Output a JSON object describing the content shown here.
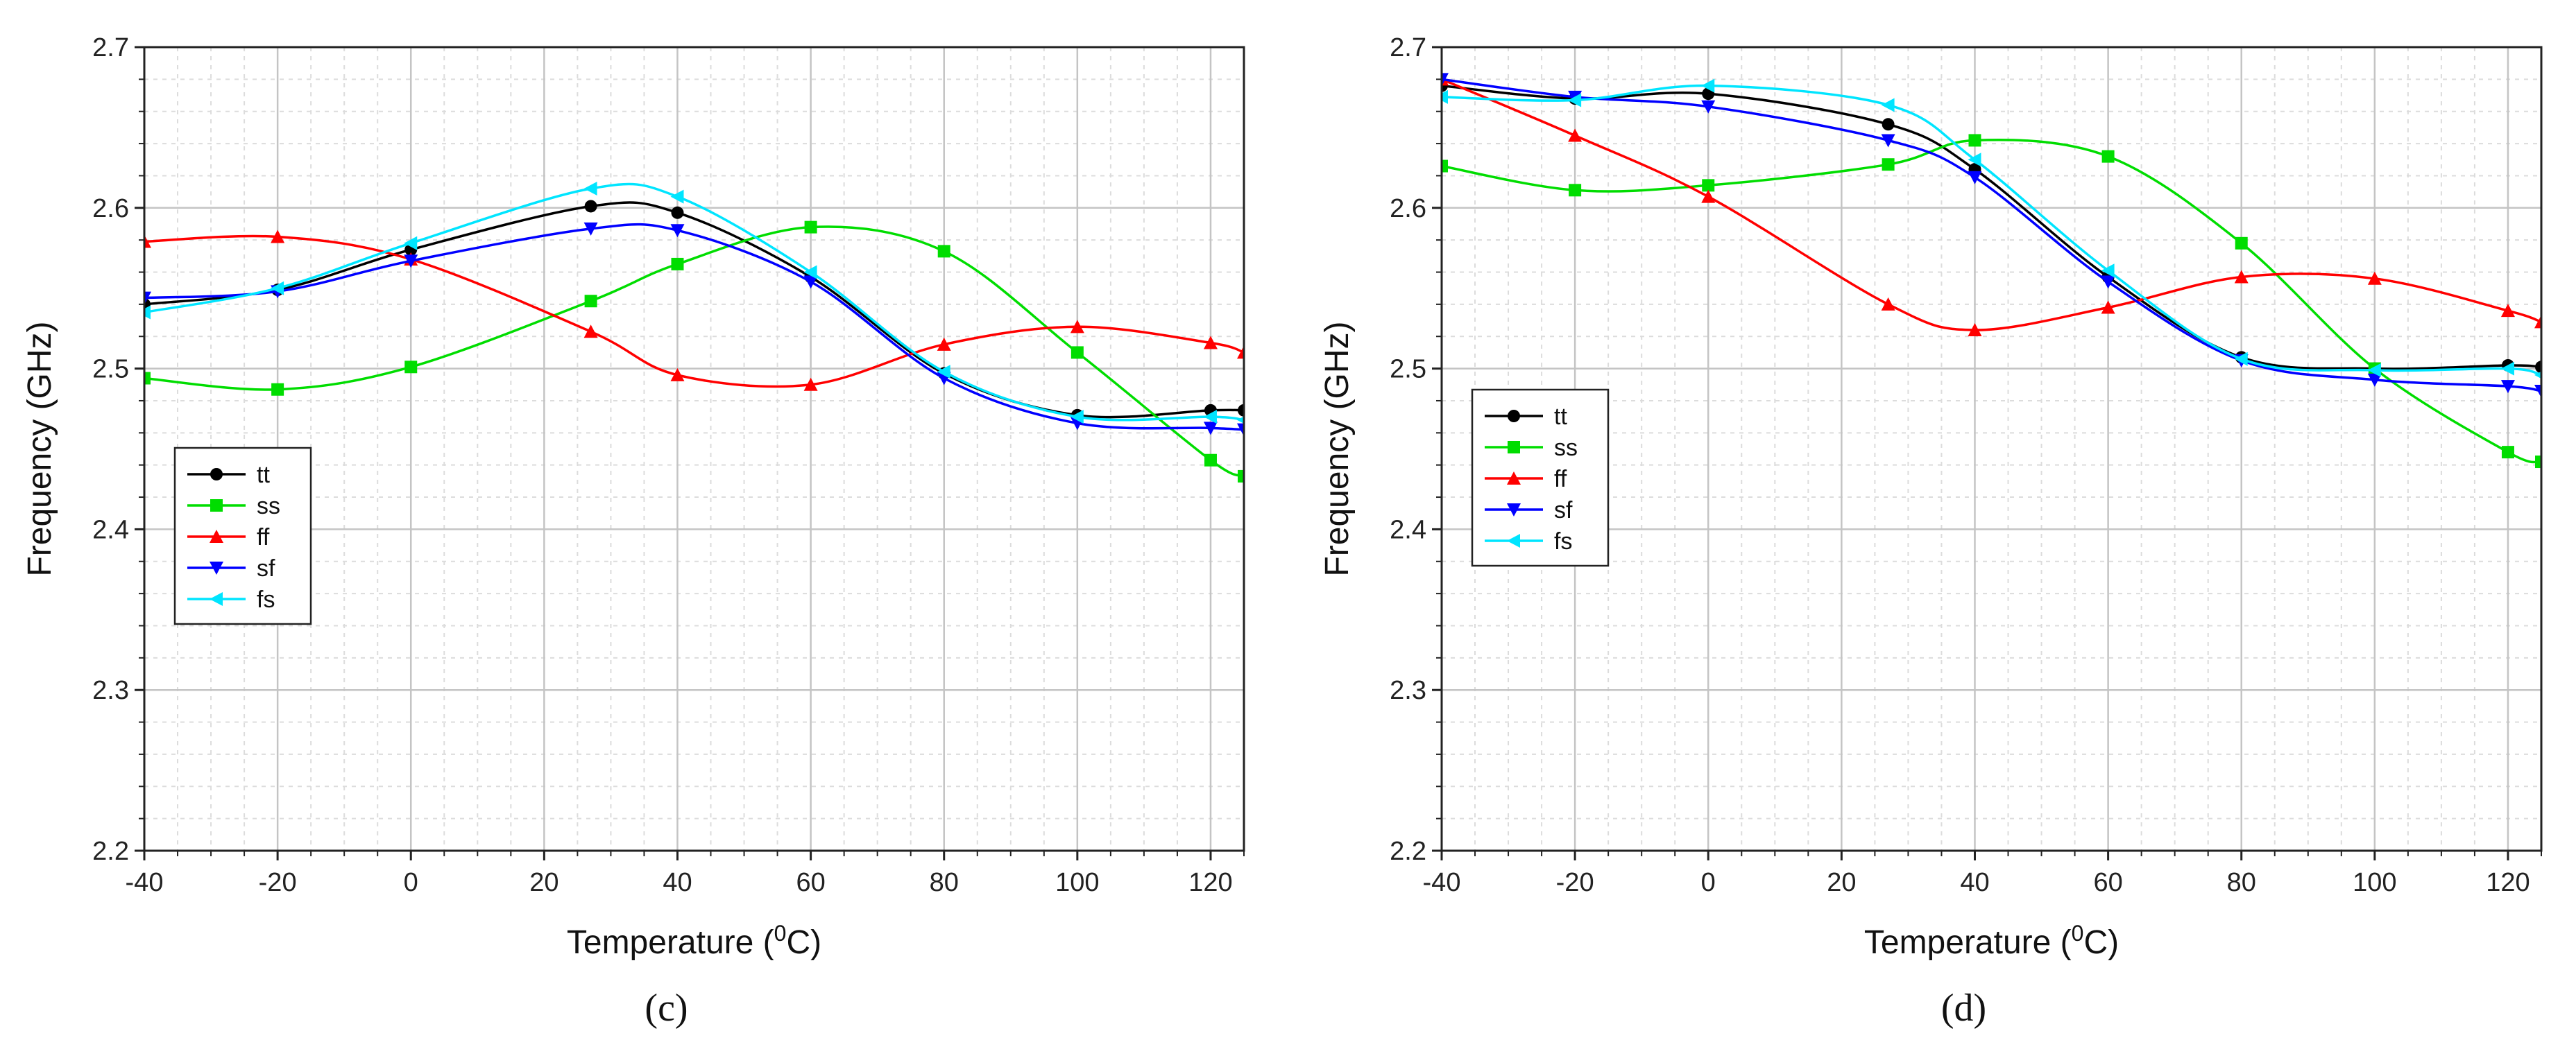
{
  "chart_data": [
    {
      "type": "line",
      "panel_label": "(c)",
      "xlabel": "Temperature",
      "xlabel_unit_base": "C",
      "xlabel_unit_sup": "0",
      "ylabel": "Frequency (GHz)",
      "xlim": [
        -40,
        125
      ],
      "ylim": [
        2.2,
        2.7
      ],
      "x_ticks": [
        "-40",
        "-20",
        "0",
        "20",
        "40",
        "60",
        "80",
        "100",
        "120"
      ],
      "y_ticks": [
        "2.2",
        "2.3",
        "2.4",
        "2.5",
        "2.6",
        "2.7"
      ],
      "grid": true,
      "legend_position": "middle-left",
      "x": [
        -40,
        -20,
        0,
        27,
        40,
        60,
        80,
        100,
        120,
        125
      ],
      "series": [
        {
          "name": "tt",
          "color": "#000000",
          "marker": "circle",
          "values": [
            2.54,
            2.549,
            2.574,
            2.601,
            2.597,
            2.557,
            2.497,
            2.471,
            2.474,
            2.474
          ]
        },
        {
          "name": "ss",
          "color": "#00dd00",
          "marker": "square",
          "values": [
            2.494,
            2.487,
            2.501,
            2.542,
            2.565,
            2.588,
            2.573,
            2.51,
            2.443,
            2.433
          ]
        },
        {
          "name": "ff",
          "color": "#ff0000",
          "marker": "triangle-up",
          "values": [
            2.579,
            2.582,
            2.568,
            2.523,
            2.496,
            2.49,
            2.515,
            2.526,
            2.516,
            2.51
          ]
        },
        {
          "name": "sf",
          "color": "#0000ff",
          "marker": "triangle-down",
          "values": [
            2.544,
            2.548,
            2.567,
            2.587,
            2.586,
            2.554,
            2.494,
            2.466,
            2.463,
            2.462
          ]
        },
        {
          "name": "fs",
          "color": "#00e5ff",
          "marker": "triangle-left",
          "values": [
            2.535,
            2.55,
            2.578,
            2.612,
            2.607,
            2.56,
            2.498,
            2.47,
            2.47,
            2.468
          ]
        }
      ]
    },
    {
      "type": "line",
      "panel_label": "(d)",
      "xlabel": "Temperature",
      "xlabel_unit_base": "C",
      "xlabel_unit_sup": "0",
      "ylabel": "Frequency (GHz)",
      "xlim": [
        -40,
        125
      ],
      "ylim": [
        2.2,
        2.7
      ],
      "x_ticks": [
        "-40",
        "-20",
        "0",
        "20",
        "40",
        "60",
        "80",
        "100",
        "120"
      ],
      "y_ticks": [
        "2.2",
        "2.3",
        "2.4",
        "2.5",
        "2.6",
        "2.7"
      ],
      "grid": true,
      "legend_position": "middle-left",
      "x": [
        -40,
        -20,
        0,
        27,
        40,
        60,
        80,
        100,
        120,
        125
      ],
      "series": [
        {
          "name": "tt",
          "color": "#000000",
          "marker": "circle",
          "values": [
            2.676,
            2.668,
            2.671,
            2.652,
            2.624,
            2.557,
            2.507,
            2.5,
            2.502,
            2.501
          ]
        },
        {
          "name": "ss",
          "color": "#00dd00",
          "marker": "square",
          "values": [
            2.626,
            2.611,
            2.614,
            2.627,
            2.642,
            2.632,
            2.578,
            2.5,
            2.448,
            2.442
          ]
        },
        {
          "name": "ff",
          "color": "#ff0000",
          "marker": "triangle-up",
          "values": [
            2.68,
            2.645,
            2.607,
            2.54,
            2.524,
            2.538,
            2.557,
            2.556,
            2.536,
            2.529
          ]
        },
        {
          "name": "sf",
          "color": "#0000ff",
          "marker": "triangle-down",
          "values": [
            2.68,
            2.669,
            2.663,
            2.642,
            2.619,
            2.554,
            2.505,
            2.493,
            2.489,
            2.486
          ]
        },
        {
          "name": "fs",
          "color": "#00e5ff",
          "marker": "triangle-left",
          "values": [
            2.669,
            2.667,
            2.676,
            2.664,
            2.63,
            2.561,
            2.506,
            2.499,
            2.5,
            2.496
          ]
        }
      ]
    }
  ]
}
